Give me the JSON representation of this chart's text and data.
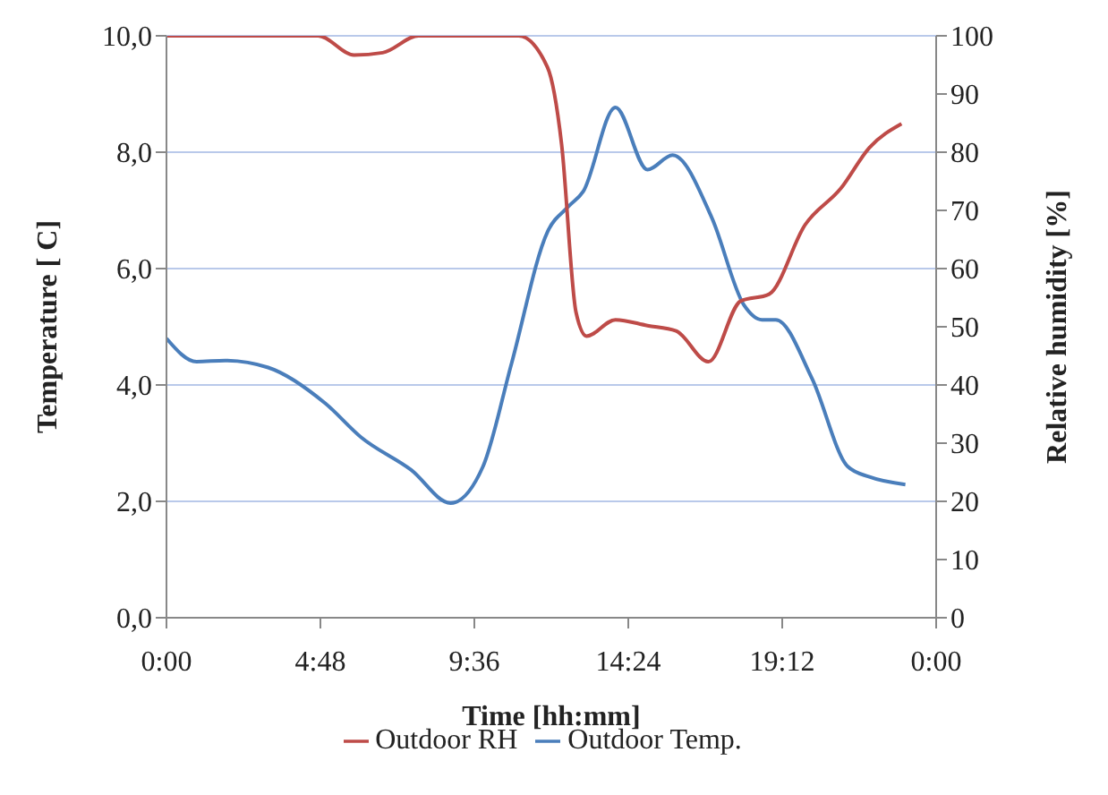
{
  "chart_data": {
    "type": "line",
    "xlabel": "Time [hh:mm]",
    "ylabel": "Temperature [ C]",
    "y2label": "Relative humidity [%]",
    "xlim": [
      0,
      24
    ],
    "xticks": [
      {
        "value": 0,
        "label": "0:00"
      },
      {
        "value": 4.8,
        "label": "4:48"
      },
      {
        "value": 9.6,
        "label": "9:36"
      },
      {
        "value": 14.4,
        "label": "14:24"
      },
      {
        "value": 19.2,
        "label": "19:12"
      },
      {
        "value": 24,
        "label": "0:00"
      }
    ],
    "ylim": [
      0,
      10
    ],
    "yticks": [
      {
        "value": 0,
        "label": "0,0"
      },
      {
        "value": 2,
        "label": "2,0"
      },
      {
        "value": 4,
        "label": "4,0"
      },
      {
        "value": 6,
        "label": "6,0"
      },
      {
        "value": 8,
        "label": "8,0"
      },
      {
        "value": 10,
        "label": "10,0"
      }
    ],
    "y2lim": [
      0,
      100
    ],
    "y2ticks": [
      0,
      10,
      20,
      30,
      40,
      50,
      60,
      70,
      80,
      90,
      100
    ],
    "grid": "y",
    "legend": "bottom",
    "marker": "none",
    "line_style": "solid",
    "series": [
      {
        "name": "Outdoor Temp.",
        "color": "#4a7ebb",
        "x": [
          0,
          0.94,
          1.83,
          3.17,
          4.96,
          6.07,
          7.63,
          8.86,
          9.87,
          10.76,
          11.88,
          12.54,
          12.99,
          14.0,
          15.0,
          15.78,
          17.0,
          18.01,
          18.57,
          19.0,
          20.13,
          21.24,
          21.92,
          23.04
        ],
        "values": [
          4.8,
          4.4,
          4.42,
          4.3,
          3.68,
          3.1,
          2.54,
          1.97,
          2.6,
          4.37,
          6.63,
          7.07,
          7.32,
          8.77,
          7.7,
          7.95,
          6.88,
          5.37,
          5.12,
          5.12,
          4.11,
          2.6,
          2.42,
          2.29
        ]
      },
      {
        "name": "Outdoor RH",
        "color": "#be4b48",
        "axis": "y2",
        "x": [
          0,
          4.73,
          5.85,
          6.74,
          7.86,
          10.98,
          11.88,
          12.32,
          12.77,
          13.1,
          14.0,
          15.0,
          15.89,
          16.9,
          17.9,
          18.79,
          19.91,
          21.03,
          21.92,
          22.92
        ],
        "values": [
          100,
          100,
          96.7,
          97.1,
          100,
          100,
          94.6,
          81.4,
          52.5,
          48.4,
          51.2,
          50.2,
          49.3,
          44.0,
          54.4,
          55.6,
          67.5,
          73.8,
          80.8,
          84.9
        ]
      }
    ]
  }
}
